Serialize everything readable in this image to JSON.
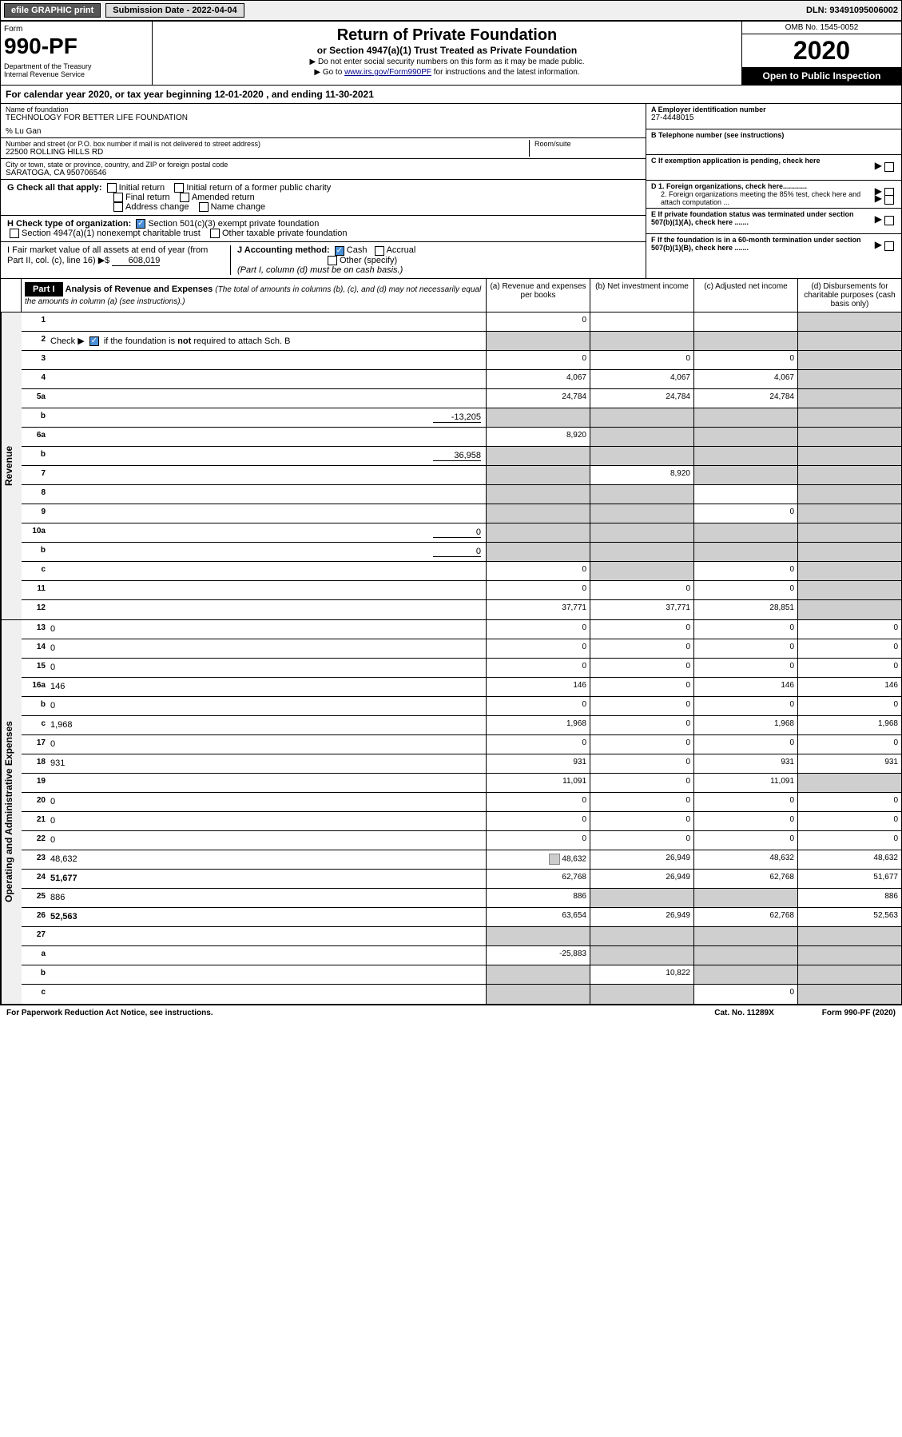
{
  "topbar": {
    "efile": "efile GRAPHIC print",
    "submission": "Submission Date - 2022-04-04",
    "dln": "DLN: 93491095006002"
  },
  "header": {
    "form_label": "Form",
    "form_number": "990-PF",
    "dept": "Department of the Treasury\nInternal Revenue Service",
    "title": "Return of Private Foundation",
    "subtitle": "or Section 4947(a)(1) Trust Treated as Private Foundation",
    "note1": "▶ Do not enter social security numbers on this form as it may be made public.",
    "note2_pre": "▶ Go to ",
    "note2_link": "www.irs.gov/Form990PF",
    "note2_post": " for instructions and the latest information.",
    "omb": "OMB No. 1545-0052",
    "year": "2020",
    "inspect": "Open to Public Inspection"
  },
  "calyear": "For calendar year 2020, or tax year beginning 12-01-2020                           , and ending 11-30-2021",
  "foundation": {
    "name_label": "Name of foundation",
    "name": "TECHNOLOGY FOR BETTER LIFE FOUNDATION",
    "care_of": "% Lu Gan",
    "addr_label": "Number and street (or P.O. box number if mail is not delivered to street address)",
    "addr": "22500 ROLLING HILLS RD",
    "room_label": "Room/suite",
    "city_label": "City or town, state or province, country, and ZIP or foreign postal code",
    "city": "SARATOGA, CA  950706546"
  },
  "right_info": {
    "a_label": "A Employer identification number",
    "a_val": "27-4448015",
    "b_label": "B Telephone number (see instructions)",
    "c_label": "C If exemption application is pending, check here",
    "d1": "D 1. Foreign organizations, check here............",
    "d2": "2. Foreign organizations meeting the 85% test, check here and attach computation ...",
    "e": "E  If private foundation status was terminated under section 507(b)(1)(A), check here .......",
    "f": "F  If the foundation is in a 60-month termination under section 507(b)(1)(B), check here .......",
    "g_label": "G Check all that apply:",
    "g_opts": [
      "Initial return",
      "Initial return of a former public charity",
      "Final return",
      "Amended return",
      "Address change",
      "Name change"
    ],
    "h_label": "H Check type of organization:",
    "h1": "Section 501(c)(3) exempt private foundation",
    "h2": "Section 4947(a)(1) nonexempt charitable trust",
    "h3": "Other taxable private foundation",
    "i_label": "I Fair market value of all assets at end of year (from Part II, col. (c), line 16) ▶$",
    "i_val": "608,019",
    "j_label": "J Accounting method:",
    "j_cash": "Cash",
    "j_accrual": "Accrual",
    "j_other": "Other (specify)",
    "j_note": "(Part I, column (d) must be on cash basis.)"
  },
  "part1": {
    "label": "Part I",
    "title": "Analysis of Revenue and Expenses",
    "title_note": "(The total of amounts in columns (b), (c), and (d) may not necessarily equal the amounts in column (a) (see instructions).)",
    "cols": {
      "a": "(a)  Revenue and expenses per books",
      "b": "(b)  Net investment income",
      "c": "(c)  Adjusted net income",
      "d": "(d)  Disbursements for charitable purposes (cash basis only)"
    }
  },
  "side_labels": {
    "revenue": "Revenue",
    "expenses": "Operating and Administrative Expenses"
  },
  "lines": [
    {
      "n": "1",
      "d": "",
      "a": "0",
      "b": "",
      "c": "",
      "shade": [
        "d"
      ]
    },
    {
      "n": "2",
      "d": "",
      "a": "",
      "b": "",
      "c": "",
      "shade": [
        "a",
        "b",
        "c",
        "d"
      ],
      "chk": true
    },
    {
      "n": "3",
      "d": "",
      "a": "0",
      "b": "0",
      "c": "0",
      "shade": [
        "d"
      ]
    },
    {
      "n": "4",
      "d": "",
      "a": "4,067",
      "b": "4,067",
      "c": "4,067",
      "shade": [
        "d"
      ]
    },
    {
      "n": "5a",
      "d": "",
      "a": "24,784",
      "b": "24,784",
      "c": "24,784",
      "shade": [
        "d"
      ]
    },
    {
      "n": "b",
      "d": "",
      "inline": "-13,205",
      "a": "",
      "b": "",
      "c": "",
      "shade": [
        "a",
        "b",
        "c",
        "d"
      ]
    },
    {
      "n": "6a",
      "d": "",
      "a": "8,920",
      "b": "",
      "c": "",
      "shade": [
        "b",
        "c",
        "d"
      ]
    },
    {
      "n": "b",
      "d": "",
      "inline": "36,958",
      "a": "",
      "b": "",
      "c": "",
      "shade": [
        "a",
        "b",
        "c",
        "d"
      ]
    },
    {
      "n": "7",
      "d": "",
      "a": "",
      "b": "8,920",
      "c": "",
      "shade": [
        "a",
        "c",
        "d"
      ]
    },
    {
      "n": "8",
      "d": "",
      "a": "",
      "b": "",
      "c": "",
      "shade": [
        "a",
        "b",
        "d"
      ]
    },
    {
      "n": "9",
      "d": "",
      "a": "",
      "b": "",
      "c": "0",
      "shade": [
        "a",
        "b",
        "d"
      ]
    },
    {
      "n": "10a",
      "d": "",
      "inline": "0",
      "a": "",
      "b": "",
      "c": "",
      "shade": [
        "a",
        "b",
        "c",
        "d"
      ]
    },
    {
      "n": "b",
      "d": "",
      "inline": "0",
      "a": "",
      "b": "",
      "c": "",
      "shade": [
        "a",
        "b",
        "c",
        "d"
      ]
    },
    {
      "n": "c",
      "d": "",
      "a": "0",
      "b": "",
      "c": "0",
      "shade": [
        "b",
        "d"
      ]
    },
    {
      "n": "11",
      "d": "",
      "a": "0",
      "b": "0",
      "c": "0",
      "shade": [
        "d"
      ]
    },
    {
      "n": "12",
      "d": "",
      "bold": true,
      "a": "37,771",
      "b": "37,771",
      "c": "28,851",
      "shade": [
        "d"
      ]
    },
    {
      "n": "13",
      "d": "0",
      "a": "0",
      "b": "0",
      "c": "0"
    },
    {
      "n": "14",
      "d": "0",
      "a": "0",
      "b": "0",
      "c": "0"
    },
    {
      "n": "15",
      "d": "0",
      "a": "0",
      "b": "0",
      "c": "0"
    },
    {
      "n": "16a",
      "d": "146",
      "a": "146",
      "b": "0",
      "c": "146"
    },
    {
      "n": "b",
      "d": "0",
      "a": "0",
      "b": "0",
      "c": "0"
    },
    {
      "n": "c",
      "d": "1,968",
      "a": "1,968",
      "b": "0",
      "c": "1,968"
    },
    {
      "n": "17",
      "d": "0",
      "a": "0",
      "b": "0",
      "c": "0"
    },
    {
      "n": "18",
      "d": "931",
      "a": "931",
      "b": "0",
      "c": "931"
    },
    {
      "n": "19",
      "d": "",
      "a": "11,091",
      "b": "0",
      "c": "11,091",
      "shade": [
        "d"
      ]
    },
    {
      "n": "20",
      "d": "0",
      "a": "0",
      "b": "0",
      "c": "0"
    },
    {
      "n": "21",
      "d": "0",
      "a": "0",
      "b": "0",
      "c": "0"
    },
    {
      "n": "22",
      "d": "0",
      "a": "0",
      "b": "0",
      "c": "0"
    },
    {
      "n": "23",
      "d": "48,632",
      "icon": true,
      "a": "48,632",
      "b": "26,949",
      "c": "48,632"
    },
    {
      "n": "24",
      "d": "51,677",
      "bold": true,
      "a": "62,768",
      "b": "26,949",
      "c": "62,768"
    },
    {
      "n": "25",
      "d": "886",
      "a": "886",
      "b": "",
      "c": "",
      "shade": [
        "b",
        "c"
      ]
    },
    {
      "n": "26",
      "d": "52,563",
      "bold": true,
      "a": "63,654",
      "b": "26,949",
      "c": "62,768"
    },
    {
      "n": "27",
      "d": "",
      "a": "",
      "b": "",
      "c": "",
      "shade": [
        "a",
        "b",
        "c",
        "d"
      ]
    },
    {
      "n": "a",
      "d": "",
      "bold": true,
      "a": "-25,883",
      "b": "",
      "c": "",
      "shade": [
        "b",
        "c",
        "d"
      ]
    },
    {
      "n": "b",
      "d": "",
      "bold": true,
      "a": "",
      "b": "10,822",
      "c": "",
      "shade": [
        "a",
        "c",
        "d"
      ]
    },
    {
      "n": "c",
      "d": "",
      "bold": true,
      "a": "",
      "b": "",
      "c": "0",
      "shade": [
        "a",
        "b",
        "d"
      ]
    }
  ],
  "footer": {
    "left": "For Paperwork Reduction Act Notice, see instructions.",
    "mid": "Cat. No. 11289X",
    "right": "Form 990-PF (2020)"
  },
  "colors": {
    "shade": "#cfcfcf",
    "checkbox_fill": "#4a90d9"
  }
}
